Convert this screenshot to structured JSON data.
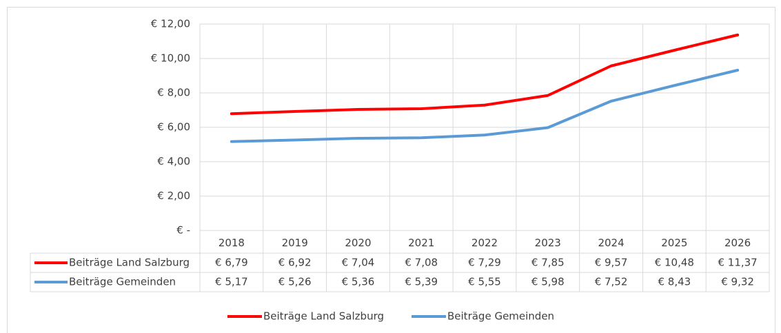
{
  "chart_data": {
    "type": "line",
    "categories": [
      "2018",
      "2019",
      "2020",
      "2021",
      "2022",
      "2023",
      "2024",
      "2025",
      "2026"
    ],
    "series": [
      {
        "name": "Beiträge Land Salzburg",
        "color": "#ff0000",
        "values": [
          6.79,
          6.92,
          7.04,
          7.08,
          7.29,
          7.85,
          9.57,
          10.48,
          11.37
        ],
        "value_labels": [
          "€ 6,79",
          "€ 6,92",
          "€ 7,04",
          "€ 7,08",
          "€ 7,29",
          "€ 7,85",
          "€ 9,57",
          "€ 10,48",
          "€ 11,37"
        ]
      },
      {
        "name": "Beiträge Gemeinden",
        "color": "#5b9bd5",
        "values": [
          5.17,
          5.26,
          5.36,
          5.39,
          5.55,
          5.98,
          7.52,
          8.43,
          9.32
        ],
        "value_labels": [
          "€ 5,17",
          "€ 5,26",
          "€ 5,36",
          "€ 5,39",
          "€ 5,55",
          "€ 5,98",
          "€ 7,52",
          "€ 8,43",
          "€ 9,32"
        ]
      }
    ],
    "ylim": [
      0,
      12
    ],
    "yticks": [
      {
        "value": 0,
        "label": "€ -"
      },
      {
        "value": 2,
        "label": "€ 2,00"
      },
      {
        "value": 4,
        "label": "€ 4,00"
      },
      {
        "value": 6,
        "label": "€ 6,00"
      },
      {
        "value": 8,
        "label": "€ 8,00"
      },
      {
        "value": 10,
        "label": "€ 10,00"
      },
      {
        "value": 12,
        "label": "€ 12,00"
      }
    ],
    "grid": true,
    "legend": "bottom"
  }
}
